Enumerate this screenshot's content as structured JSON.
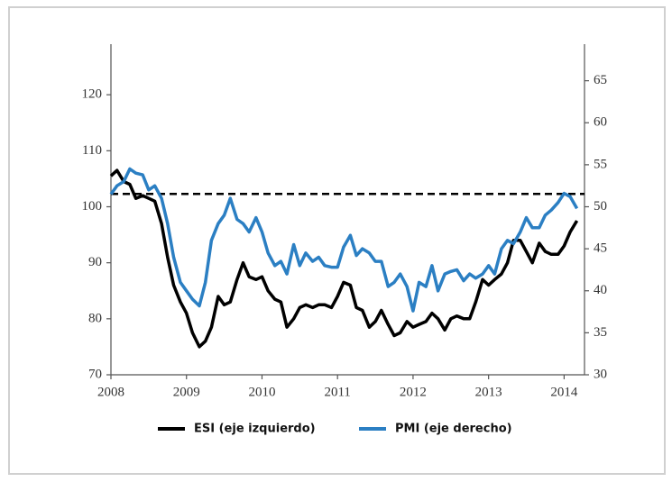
{
  "chart_data": {
    "type": "line",
    "x": [
      2008,
      2008.08,
      2008.17,
      2008.25,
      2008.33,
      2008.42,
      2008.5,
      2008.58,
      2008.67,
      2008.75,
      2008.83,
      2008.92,
      2009,
      2009.08,
      2009.17,
      2009.25,
      2009.33,
      2009.42,
      2009.5,
      2009.58,
      2009.67,
      2009.75,
      2009.83,
      2009.92,
      2010,
      2010.08,
      2010.17,
      2010.25,
      2010.33,
      2010.42,
      2010.5,
      2010.58,
      2010.67,
      2010.75,
      2010.83,
      2010.92,
      2011,
      2011.08,
      2011.17,
      2011.25,
      2011.33,
      2011.42,
      2011.5,
      2011.58,
      2011.67,
      2011.75,
      2011.83,
      2011.92,
      2012,
      2012.08,
      2012.17,
      2012.25,
      2012.33,
      2012.42,
      2012.5,
      2012.58,
      2012.67,
      2012.75,
      2012.83,
      2012.92,
      2013,
      2013.08,
      2013.17,
      2013.25,
      2013.33,
      2013.42,
      2013.5,
      2013.58,
      2013.67,
      2013.75,
      2013.83,
      2013.92,
      2014,
      2014.08,
      2014.17
    ],
    "series": [
      {
        "name": "ESI (eje izquierdo)",
        "color": "#000000",
        "axis": "y",
        "values": [
          105.5,
          106.5,
          104.5,
          104,
          101.5,
          102,
          101.5,
          101,
          97,
          91,
          86,
          83,
          81,
          77.5,
          75,
          76,
          78.5,
          84,
          82.5,
          83,
          87,
          90,
          87.5,
          87,
          87.5,
          85,
          83.5,
          83,
          78.5,
          80,
          82,
          82.5,
          82,
          82.5,
          82.5,
          82,
          84,
          86.5,
          86,
          82,
          81.5,
          78.5,
          79.5,
          81.5,
          79,
          77,
          77.5,
          79.5,
          78.5,
          79,
          79.5,
          81,
          80,
          78,
          80,
          80.5,
          80,
          80,
          83,
          87,
          86,
          87,
          88,
          90,
          94,
          94,
          92,
          90,
          93.5,
          92,
          91.5,
          91.5,
          93,
          95.5,
          97.5
        ]
      },
      {
        "name": "PMI (eje derecho)",
        "color": "#2b7fc3",
        "axis": "y2",
        "values": [
          51.5,
          52.5,
          53,
          54.5,
          54,
          53.8,
          52,
          52.5,
          51,
          48,
          44,
          41,
          40,
          39,
          38.2,
          41,
          46,
          48,
          49,
          51,
          48.5,
          48,
          47,
          48.7,
          47,
          44.5,
          43,
          43.5,
          42,
          45.5,
          43,
          44.5,
          43.5,
          44,
          43,
          42.8,
          42.8,
          45.2,
          46.6,
          44.2,
          45,
          44.5,
          43.5,
          43.5,
          40.5,
          41,
          42,
          40.5,
          37.6,
          41,
          40.5,
          43,
          40,
          42,
          42.3,
          42.5,
          41.2,
          42,
          41.5,
          42,
          43,
          42,
          45,
          46,
          45.6,
          47,
          48.7,
          47.5,
          47.5,
          49,
          49.6,
          50.5,
          51.6,
          51.2,
          49.8
        ]
      }
    ],
    "hline": 102.3,
    "xlim": [
      2008,
      2014.27
    ],
    "xticks": [
      2008,
      2009,
      2010,
      2011,
      2012,
      2013,
      2014
    ],
    "ylim": [
      70,
      130
    ],
    "yticks": [
      70,
      80,
      90,
      100,
      110,
      120
    ],
    "y2lim": [
      30,
      70
    ],
    "y2ticks": [
      30,
      35,
      40,
      45,
      50,
      55,
      60,
      65
    ]
  }
}
